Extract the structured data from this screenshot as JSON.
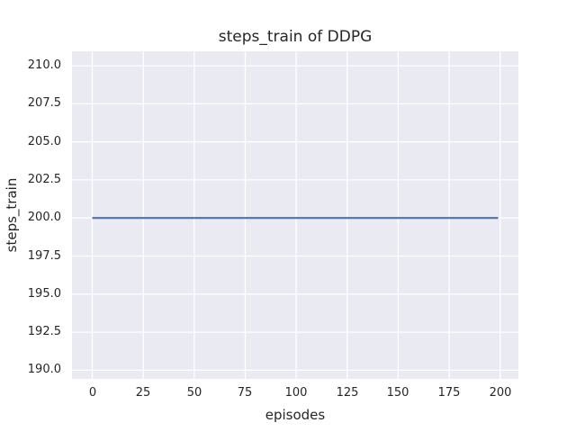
{
  "chart_data": {
    "type": "line",
    "title": "steps_train of DDPG",
    "xlabel": "episodes",
    "ylabel": "steps_train",
    "x_ticks": [
      0,
      25,
      50,
      75,
      100,
      125,
      150,
      175,
      200
    ],
    "x_tick_labels": [
      "0",
      "25",
      "50",
      "75",
      "100",
      "125",
      "150",
      "175",
      "200"
    ],
    "y_ticks": [
      190.0,
      192.5,
      195.0,
      197.5,
      200.0,
      202.5,
      205.0,
      207.5,
      210.0
    ],
    "y_tick_labels": [
      "190.0",
      "192.5",
      "195.0",
      "197.5",
      "200.0",
      "202.5",
      "205.0",
      "207.5",
      "210.0"
    ],
    "xlim": [
      -9.95,
      208.95
    ],
    "ylim": [
      189.43,
      210.95
    ],
    "grid": true,
    "legend": null,
    "series": [
      {
        "name": "steps_train",
        "x": [
          0,
          199
        ],
        "y": [
          200,
          200
        ],
        "constant_value": 200,
        "color": "#4C72B0"
      }
    ],
    "colors": {
      "figure_background": "#FFFFFF",
      "axes_background": "#EAEAF2",
      "grid": "#FFFFFF",
      "text": "#262626"
    }
  }
}
